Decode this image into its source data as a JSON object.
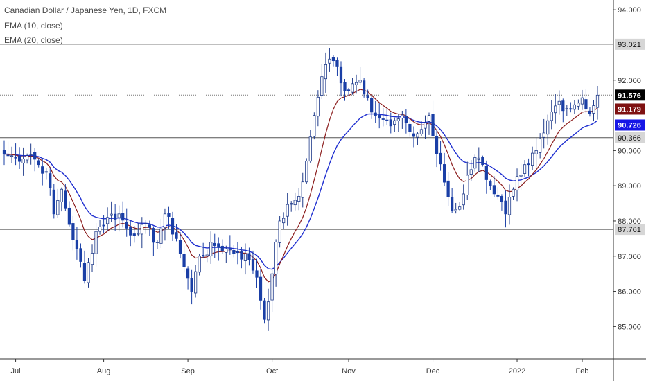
{
  "legend": {
    "line1": "Canadian Dollar / Japanese Yen, 1D, FXCM",
    "line2": "EMA (10, close)",
    "line3": "EMA (20, close)"
  },
  "colors": {
    "up_candle": "#ffffff",
    "up_border": "#1e3a8a",
    "down_candle": "#1a3fa6",
    "ema10": "#8b1c1c",
    "ema20": "#1f2fd0",
    "hline": "#555555",
    "last_price_bg": "#000000",
    "ema10_bg": "#7f1111",
    "ema20_bg": "#1616e6"
  },
  "chart_data": {
    "type": "candlestick",
    "title": "Canadian Dollar / Japanese Yen, 1D, FXCM",
    "ylim": [
      84.2,
      94.2
    ],
    "y_ticks": [
      "85.000",
      "86.000",
      "87.000",
      "88.000",
      "89.000",
      "90.000",
      "92.000",
      "94.000"
    ],
    "x_labels": [
      "Jul",
      "Aug",
      "Sep",
      "Oct",
      "Nov",
      "Dec",
      "2022",
      "Feb"
    ],
    "horizontal_levels": [
      {
        "value": 93.021,
        "label": "93.021",
        "style": "solid"
      },
      {
        "value": 90.366,
        "label": "90.366",
        "style": "solid"
      },
      {
        "value": 87.761,
        "label": "87.761",
        "style": "solid"
      },
      {
        "value": 91.576,
        "label": "91.576",
        "style": "dotted"
      }
    ],
    "price_labels": {
      "last": "91.576",
      "ema10": "91.179",
      "ema20": "90.726"
    },
    "anchors_close": [
      [
        0,
        89.9
      ],
      [
        3,
        89.8
      ],
      [
        7,
        89.9
      ],
      [
        9,
        89.6
      ],
      [
        11,
        89.4
      ],
      [
        13,
        88.2
      ],
      [
        15,
        88.9
      ],
      [
        17,
        87.9
      ],
      [
        19,
        87.2
      ],
      [
        21,
        86.3
      ],
      [
        24,
        87.7
      ],
      [
        27,
        88.1
      ],
      [
        30,
        88.2
      ],
      [
        33,
        87.6
      ],
      [
        36,
        87.9
      ],
      [
        40,
        87.4
      ],
      [
        42,
        88.2
      ],
      [
        45,
        87.5
      ],
      [
        47,
        86.7
      ],
      [
        49,
        86.0
      ],
      [
        51,
        87.0
      ],
      [
        55,
        87.3
      ],
      [
        58,
        87.2
      ],
      [
        61,
        87.1
      ],
      [
        64,
        86.9
      ],
      [
        66,
        86.4
      ],
      [
        68,
        85.2
      ],
      [
        70,
        86.5
      ],
      [
        72,
        88.0
      ],
      [
        75,
        88.5
      ],
      [
        77,
        88.7
      ],
      [
        79,
        89.7
      ],
      [
        81,
        91.0
      ],
      [
        83,
        92.1
      ],
      [
        85,
        92.6
      ],
      [
        87,
        92.4
      ],
      [
        89,
        91.7
      ],
      [
        91,
        91.9
      ],
      [
        93,
        92.0
      ],
      [
        95,
        91.5
      ],
      [
        97,
        91.0
      ],
      [
        99,
        90.9
      ],
      [
        101,
        90.7
      ],
      [
        103,
        90.9
      ],
      [
        105,
        90.8
      ],
      [
        107,
        90.4
      ],
      [
        109,
        90.6
      ],
      [
        111,
        91.0
      ],
      [
        113,
        89.9
      ],
      [
        115,
        89.1
      ],
      [
        117,
        88.3
      ],
      [
        119,
        88.4
      ],
      [
        121,
        89.3
      ],
      [
        123,
        89.8
      ],
      [
        125,
        89.6
      ],
      [
        127,
        89.0
      ],
      [
        129,
        88.7
      ],
      [
        131,
        88.2
      ],
      [
        133,
        88.9
      ],
      [
        135,
        89.3
      ],
      [
        137,
        89.6
      ],
      [
        139,
        90.0
      ],
      [
        141,
        90.5
      ],
      [
        143,
        91.1
      ],
      [
        145,
        91.4
      ],
      [
        147,
        91.2
      ],
      [
        149,
        91.3
      ],
      [
        151,
        91.5
      ],
      [
        153,
        91.05
      ],
      [
        155,
        91.576
      ]
    ],
    "seed": 7
  }
}
